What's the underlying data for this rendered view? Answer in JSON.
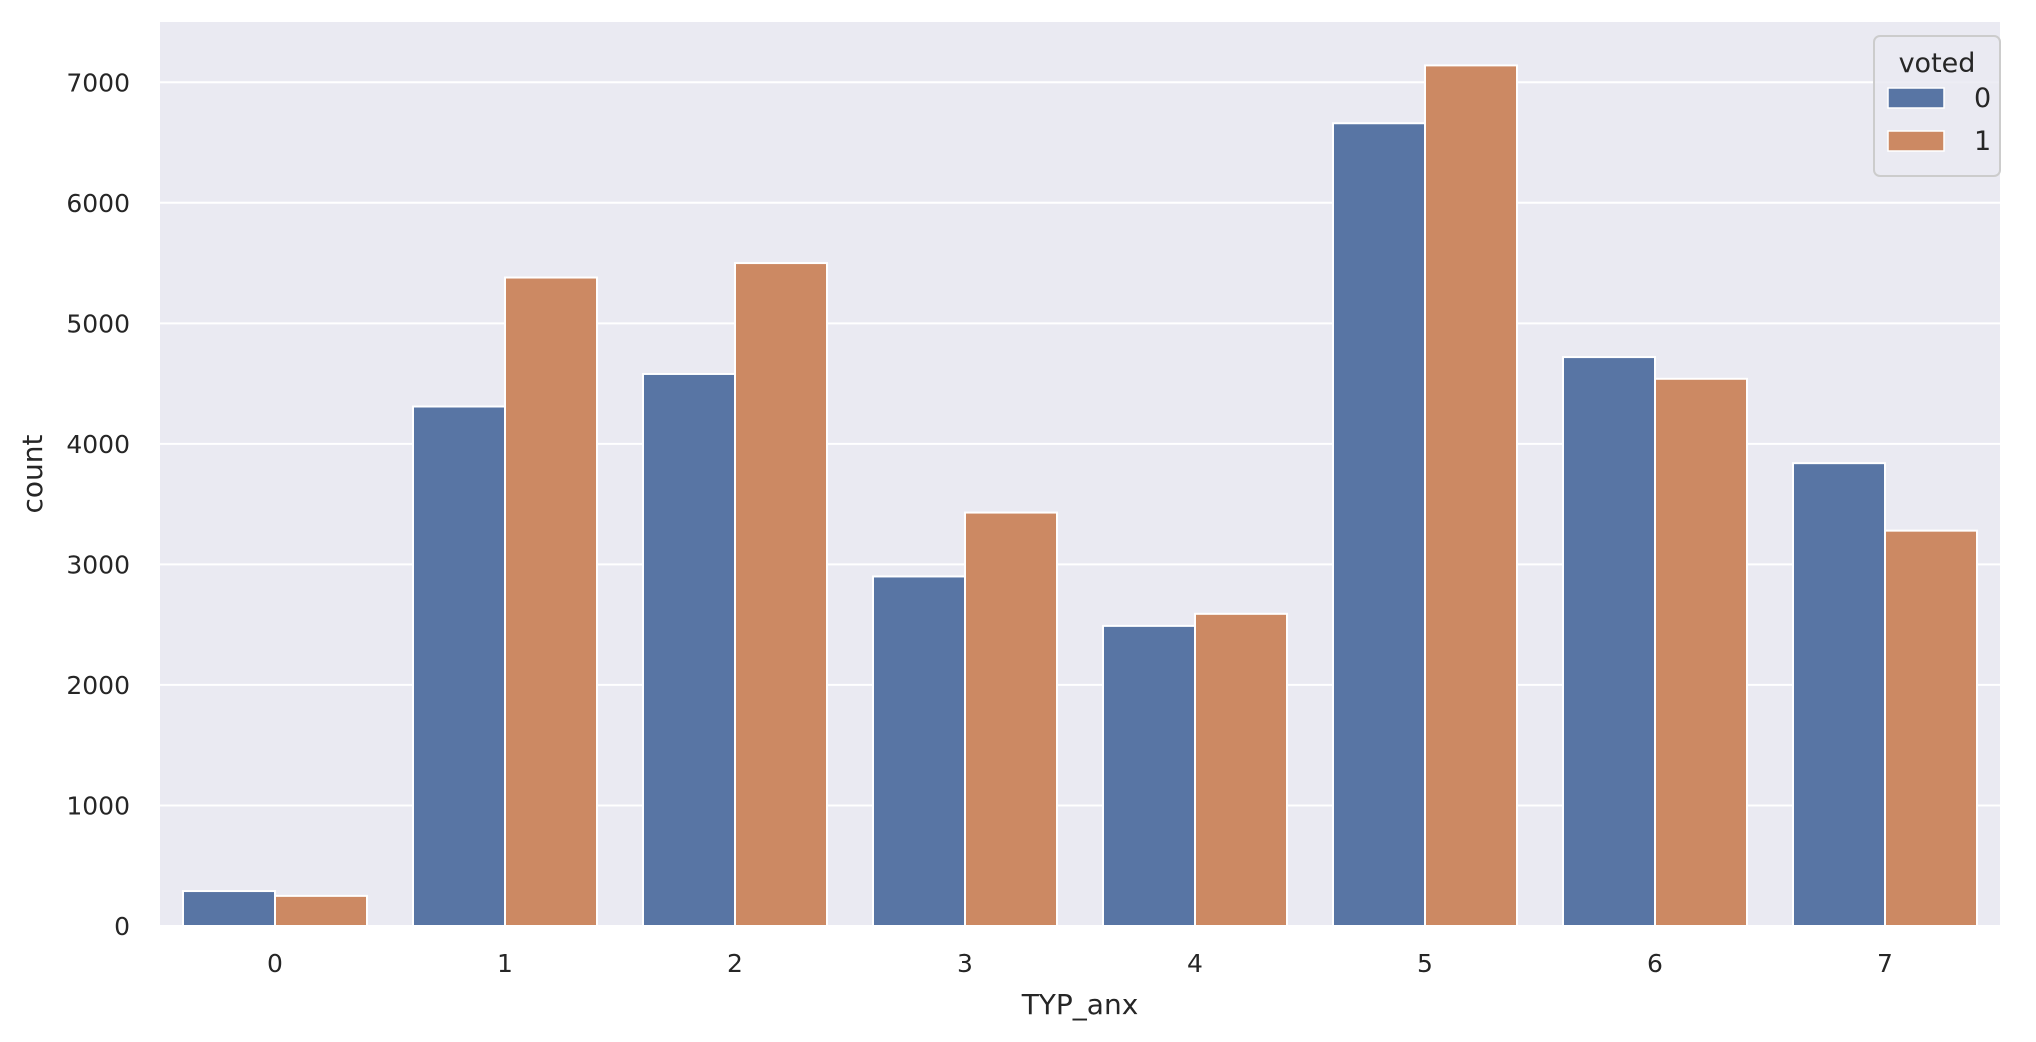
{
  "chart_data": {
    "type": "bar",
    "xlabel": "TYP_anx",
    "ylabel": "count",
    "categories": [
      "0",
      "1",
      "2",
      "3",
      "4",
      "5",
      "6",
      "7"
    ],
    "series": [
      {
        "name": "0",
        "color": "#5875a4",
        "values": [
          290,
          4310,
          4580,
          2900,
          2490,
          6660,
          4720,
          3840
        ]
      },
      {
        "name": "1",
        "color": "#cc8963",
        "values": [
          250,
          5380,
          5500,
          3430,
          2590,
          7140,
          4540,
          3280
        ]
      }
    ],
    "ylim": [
      0,
      7500
    ],
    "yticks": [
      0,
      1000,
      2000,
      3000,
      4000,
      5000,
      6000,
      7000
    ],
    "grid": true,
    "legend": {
      "title": "voted",
      "position": "top-right"
    },
    "colors": {
      "background": "#eaeaf2",
      "grid": "#ffffff",
      "text": "#262626"
    }
  }
}
